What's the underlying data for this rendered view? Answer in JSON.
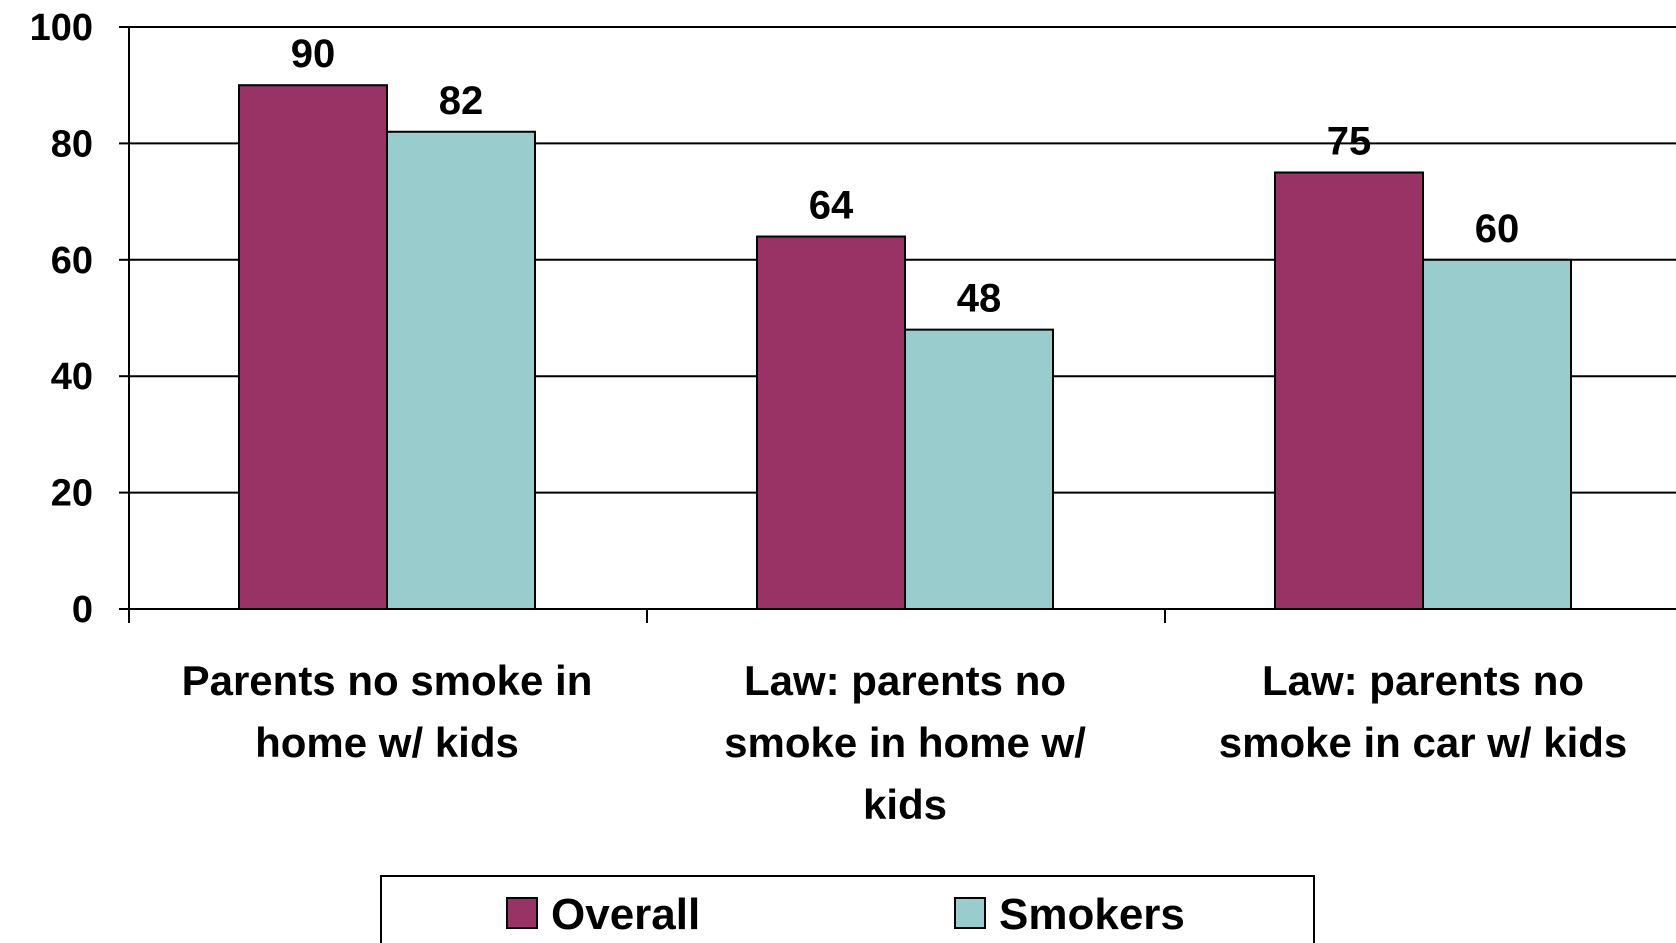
{
  "chart_data": {
    "type": "bar",
    "title": "",
    "xlabel": "",
    "ylabel": "",
    "ylim": [
      0,
      100
    ],
    "yticks": [
      0,
      20,
      40,
      60,
      80,
      100
    ],
    "grid": true,
    "legend_position": "bottom",
    "categories": [
      [
        "Parents no smoke in",
        "home w/ kids"
      ],
      [
        "Law: parents no",
        "smoke in home w/",
        "kids"
      ],
      [
        "Law: parents no",
        "smoke in car w/ kids"
      ]
    ],
    "series": [
      {
        "name": "Overall",
        "color": "#993366",
        "values": [
          90,
          64,
          75
        ]
      },
      {
        "name": "Smokers",
        "color": "#99CCCC",
        "values": [
          82,
          48,
          60
        ]
      }
    ]
  }
}
